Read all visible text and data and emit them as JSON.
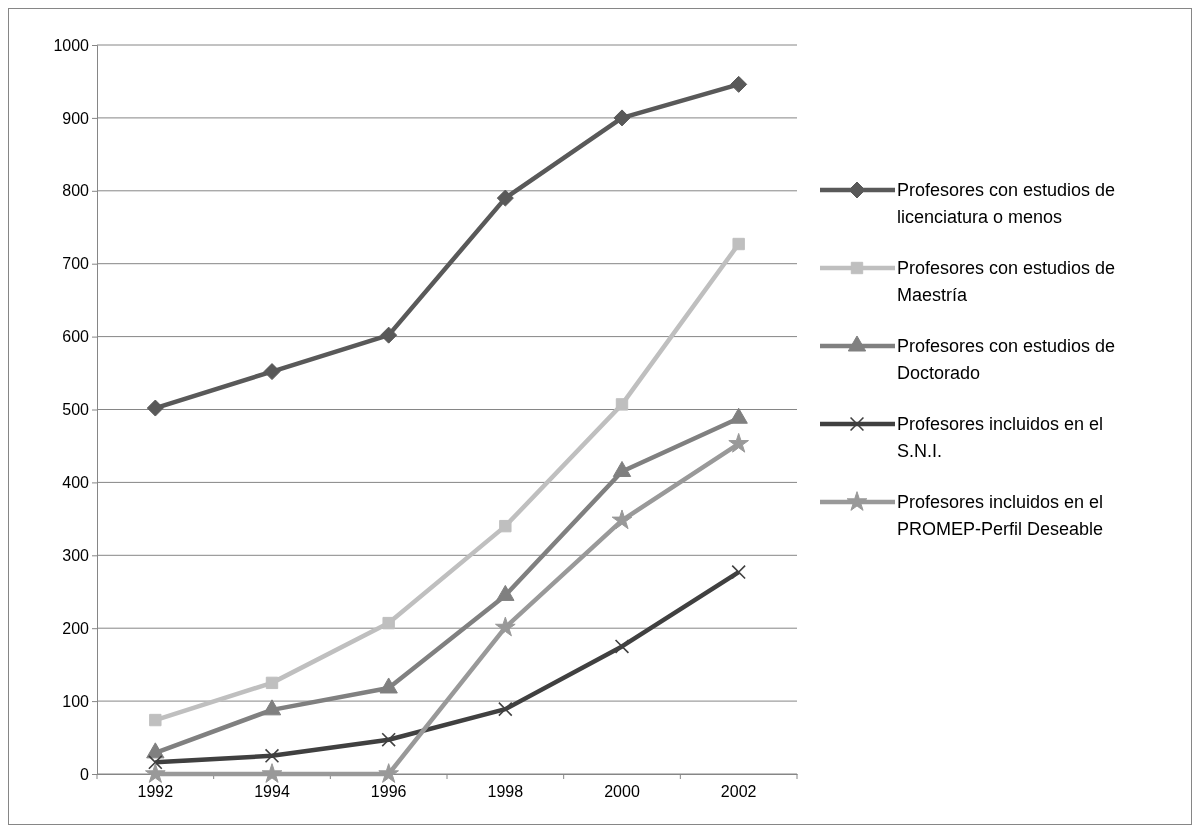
{
  "chart_data": {
    "type": "line",
    "categories": [
      "1992",
      "1994",
      "1996",
      "1998",
      "2000",
      "2002"
    ],
    "ylim": [
      0,
      1000
    ],
    "yticks": [
      0,
      100,
      200,
      300,
      400,
      500,
      600,
      700,
      800,
      900,
      1000
    ],
    "grid": "y",
    "legend": "right",
    "line_style": "solid",
    "series": [
      {
        "name": "Profesores con estudios de licenciatura o menos",
        "color": "#595959",
        "marker": "diamond",
        "values": [
          502,
          552,
          602,
          790,
          900,
          946
        ]
      },
      {
        "name": "Profesores con estudios de Maestría",
        "color": "#bfbfbf",
        "marker": "square",
        "values": [
          74,
          125,
          207,
          340,
          507,
          727
        ]
      },
      {
        "name": "Profesores con estudios de Doctorado",
        "color": "#808080",
        "marker": "triangle",
        "values": [
          29,
          88,
          118,
          245,
          415,
          488
        ]
      },
      {
        "name": "Profesores incluidos en el S.N.I.",
        "color": "#404040",
        "marker": "cross",
        "values": [
          16,
          25,
          47,
          89,
          175,
          277
        ]
      },
      {
        "name": "Profesores incluidos en el PROMEP-Perfil Deseable",
        "color": "#999999",
        "marker": "star",
        "values": [
          0,
          0,
          0,
          201,
          348,
          453
        ]
      }
    ]
  }
}
